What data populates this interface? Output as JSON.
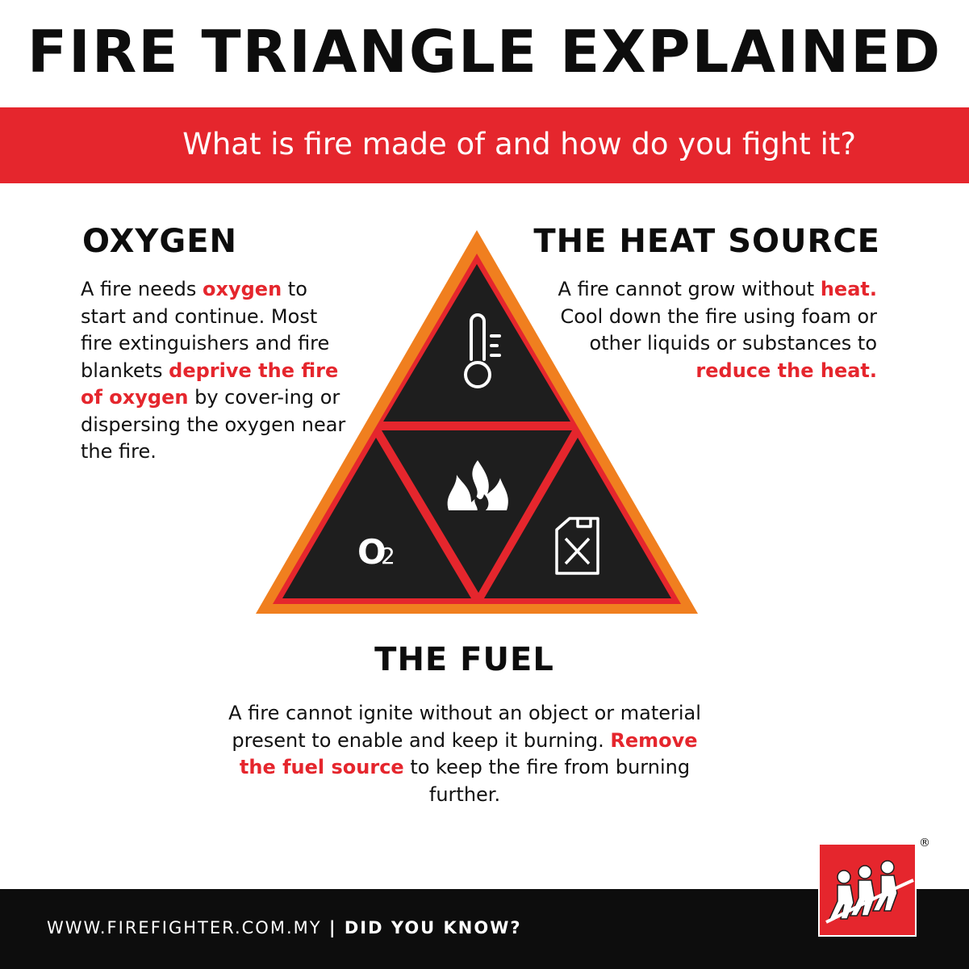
{
  "title": "FIRE TRIANGLE EXPLAINED",
  "subtitle": "What is fire made of and how do you fight it?",
  "oxygen": {
    "heading": "OXYGEN",
    "t1": "A fire needs ",
    "h1": "oxygen",
    "t2": " to start and continue. Most fire extinguishers and fire blankets ",
    "h2": "deprive the fire of oxygen",
    "t3": " by cover-ing or dispersing the oxygen near the fire."
  },
  "heat": {
    "heading": "THE HEAT SOURCE",
    "t1": "A fire cannot grow without ",
    "h1": "heat.",
    "t2": " Cool down the fire using foam or other liquids or substances to ",
    "h2": "reduce the heat."
  },
  "fuel": {
    "heading": "THE FUEL",
    "t1": "A fire cannot ignite without an object or material present to enable and keep it burning. ",
    "h1": "Remove the fuel source",
    "t2": " to keep the fire from burning further."
  },
  "triangle": {
    "o2_label": "O",
    "o2_sub": "2",
    "icons": [
      "thermometer-icon",
      "fire-icon",
      "o2-icon",
      "fuel-can-icon"
    ]
  },
  "footer": {
    "url": "WWW.FIREFIGHTER.COM.MY",
    "separator": " | ",
    "tagline": "DID YOU KNOW?"
  },
  "logo": {
    "registered": "®"
  },
  "colors": {
    "accent": "#e5262d",
    "triangle_outer": "#f07f1f",
    "triangle_fill": "#1e1e1e",
    "dark": "#0d0d0d"
  }
}
